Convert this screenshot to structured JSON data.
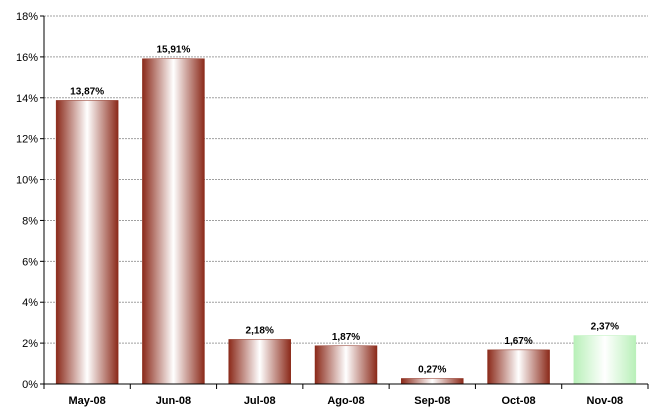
{
  "chart_data": {
    "type": "bar",
    "title": "",
    "xlabel": "",
    "ylabel": "",
    "categories": [
      "May-08",
      "Jun-08",
      "Jul-08",
      "Ago-08",
      "Sep-08",
      "Oct-08",
      "Nov-08"
    ],
    "values": [
      13.87,
      15.91,
      2.18,
      1.87,
      0.27,
      1.67,
      2.37
    ],
    "data_labels": [
      "13,87%",
      "15,91%",
      "2,18%",
      "1,87%",
      "0,27%",
      "1,67%",
      "2,37%"
    ],
    "ylim": [
      0,
      18
    ],
    "yticks": [
      0,
      2,
      4,
      6,
      8,
      10,
      12,
      14,
      16,
      18
    ],
    "ytick_labels": [
      "0%",
      "2%",
      "4%",
      "6%",
      "8%",
      "10%",
      "12%",
      "14%",
      "16%",
      "18%"
    ],
    "grid": true,
    "legend": "none",
    "colors": {
      "bar_edge": "#8b2a1a",
      "bar_highlight": "#ffffff",
      "last_bar_edge": "#b8f0b8",
      "grid": "#a0a0a0",
      "axis": "#000000"
    }
  }
}
